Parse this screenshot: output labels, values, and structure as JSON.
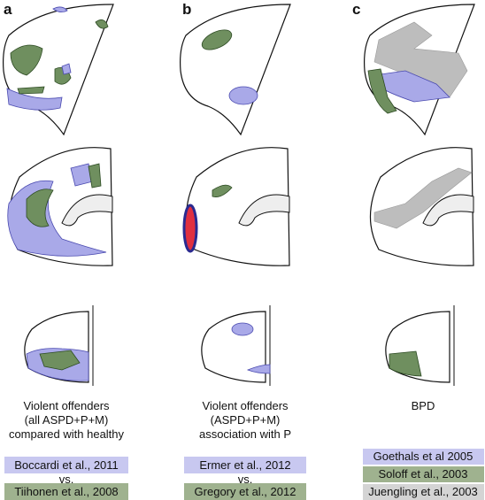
{
  "panels": [
    {
      "label": "a",
      "caption": [
        "Violent offenders",
        "(all ASPD+P+M)",
        "compared with healthy"
      ],
      "studies": [
        "Boccardi et al., 2011",
        "Tiihonen et al., 2008"
      ],
      "separator": "vs."
    },
    {
      "label": "b",
      "caption": [
        "Violent offenders",
        "(ASPD+P+M)",
        "association with P"
      ],
      "studies": [
        "Ermer et al., 2012",
        "Gregory et al., 2012"
      ],
      "separator": "vs."
    },
    {
      "label": "c",
      "caption": [
        "BPD"
      ],
      "studies": [
        "Goethals et al 2005",
        "Soloff et al., 2003",
        "Juengling et al., 2003"
      ]
    }
  ]
}
